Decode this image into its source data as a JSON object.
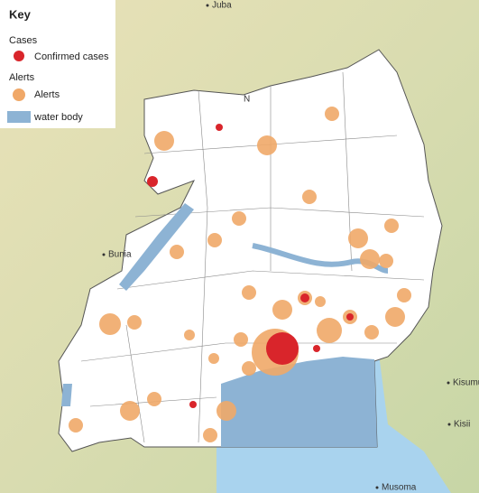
{
  "legend": {
    "title": "Key",
    "groups": [
      {
        "heading": "Cases",
        "items": [
          "Confirmed cases"
        ]
      },
      {
        "heading": "Alerts",
        "items": [
          "Alerts",
          "water body"
        ]
      }
    ]
  },
  "places": [
    "Juba",
    "N",
    "Bunia",
    "Kisumu",
    "Kisii",
    "Musoma"
  ]
}
